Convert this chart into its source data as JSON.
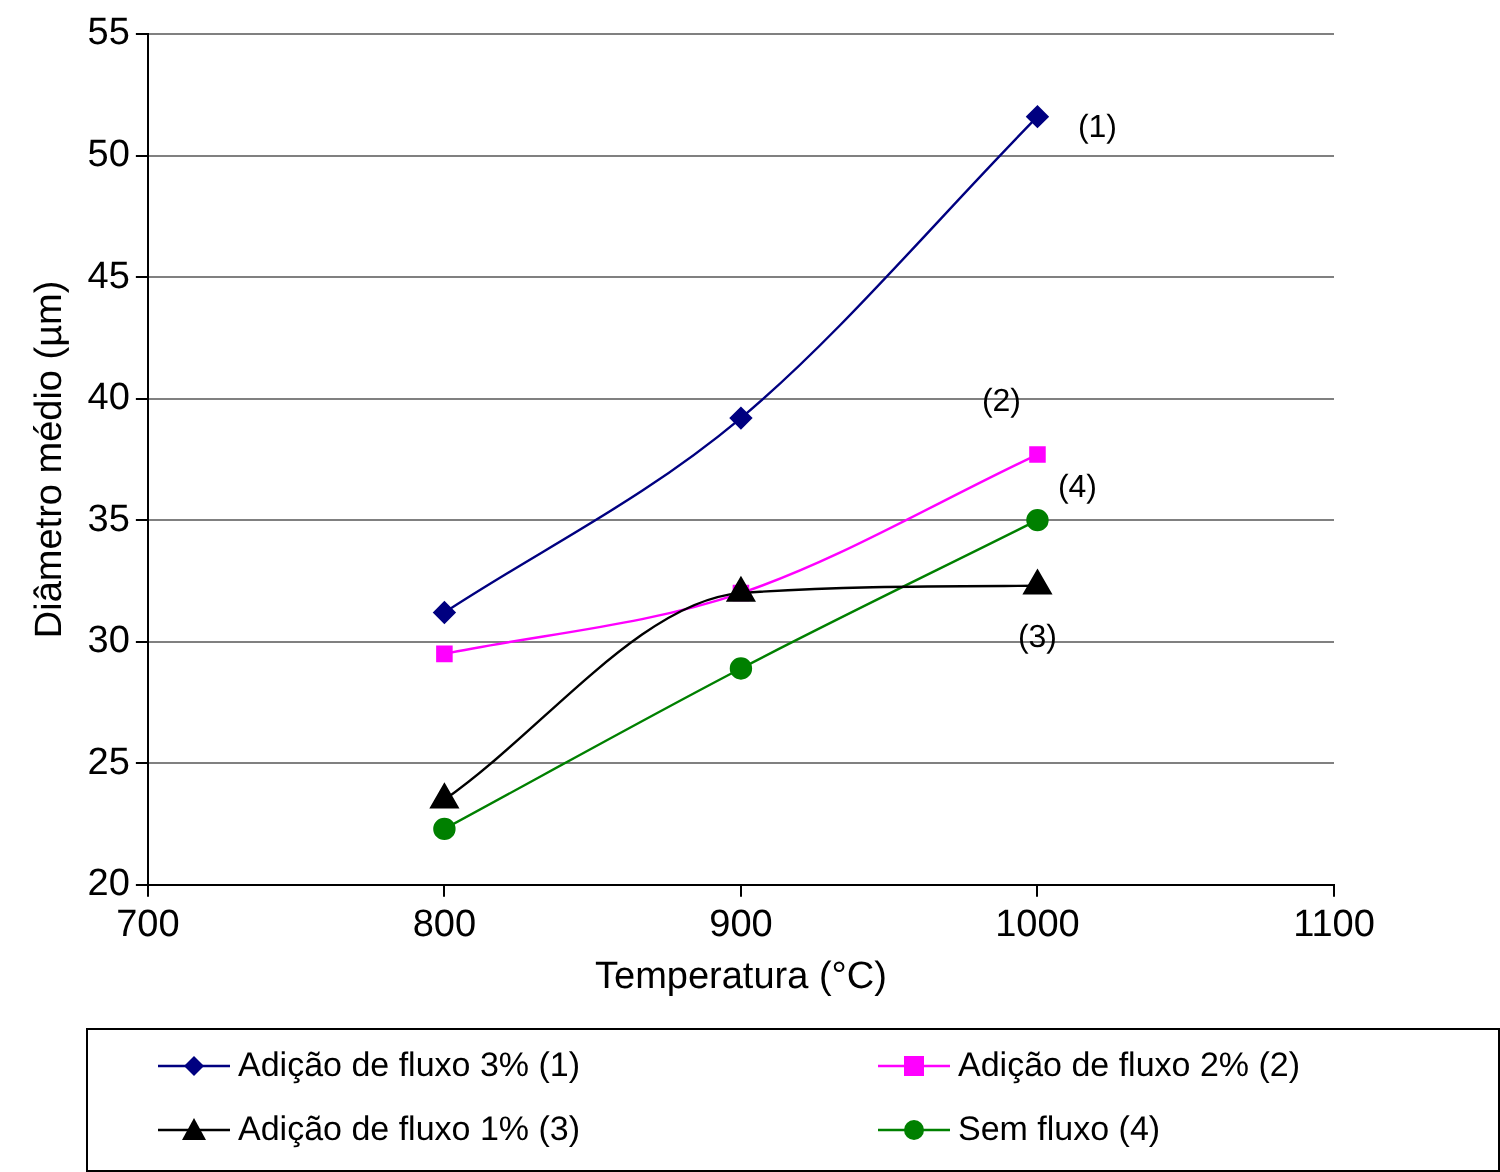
{
  "chart_data": {
    "type": "line",
    "xlabel": "Temperatura (°C)",
    "ylabel": "Diâmetro médio (µm)",
    "x": [
      800,
      900,
      1000
    ],
    "xlim": [
      700,
      1100
    ],
    "xticks": [
      700,
      800,
      900,
      1000,
      1100
    ],
    "ylim": [
      20,
      55
    ],
    "yticks": [
      20,
      25,
      30,
      35,
      40,
      45,
      50,
      55
    ],
    "grid": "y",
    "legend": "bottom",
    "series": [
      {
        "name": "Adição de fluxo 3% (1)",
        "color": "#000080",
        "marker": "diamond",
        "values": [
          31.2,
          39.2,
          51.6
        ]
      },
      {
        "name": "Adição de fluxo 2% (2)",
        "color": "#ff00ff",
        "marker": "square",
        "values": [
          29.5,
          32.0,
          37.7
        ]
      },
      {
        "name": "Adição de fluxo 1% (3)",
        "color": "#000000",
        "marker": "triangle",
        "values": [
          23.5,
          32.0,
          32.3
        ]
      },
      {
        "name": "Sem fluxo (4)",
        "color": "#008000",
        "marker": "circle",
        "values": [
          22.3,
          28.9,
          35.0
        ]
      }
    ],
    "annotations": [
      "(1)",
      "(2)",
      "(3)",
      "(4)"
    ]
  }
}
